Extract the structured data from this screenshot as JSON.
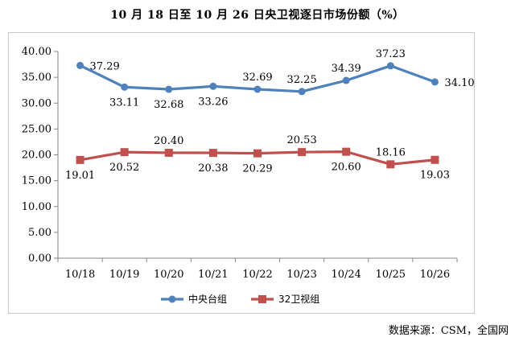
{
  "chart_data": {
    "type": "line",
    "title": "10 月 18 日至 10 月 26 日央卫视逐日市场份额（%）",
    "categories": [
      "10/18",
      "10/19",
      "10/20",
      "10/21",
      "10/22",
      "10/23",
      "10/24",
      "10/25",
      "10/26"
    ],
    "ylim": [
      0,
      40
    ],
    "yticks": [
      "0.00",
      "5.00",
      "10.00",
      "15.00",
      "20.00",
      "25.00",
      "30.00",
      "35.00",
      "40.00"
    ],
    "grid": false,
    "legend_position": "bottom",
    "series": [
      {
        "name": "中央台组",
        "color": "#4f81bd",
        "marker": "circle",
        "values": [
          37.29,
          33.11,
          32.68,
          33.26,
          32.69,
          32.25,
          34.39,
          37.23,
          34.1
        ],
        "labels": [
          "37.29",
          "33.11",
          "32.68",
          "33.26",
          "32.69",
          "32.25",
          "34.39",
          "37.23",
          "34.10"
        ]
      },
      {
        "name": "32卫视组",
        "color": "#c0504d",
        "marker": "square",
        "values": [
          19.01,
          20.52,
          20.4,
          20.38,
          20.29,
          20.53,
          20.6,
          18.16,
          19.03
        ],
        "labels": [
          "19.01",
          "20.52",
          "20.40",
          "20.38",
          "20.29",
          "20.53",
          "20.60",
          "18.16",
          "19.03"
        ]
      }
    ]
  },
  "source_text": "数据来源：CSM，全国网"
}
